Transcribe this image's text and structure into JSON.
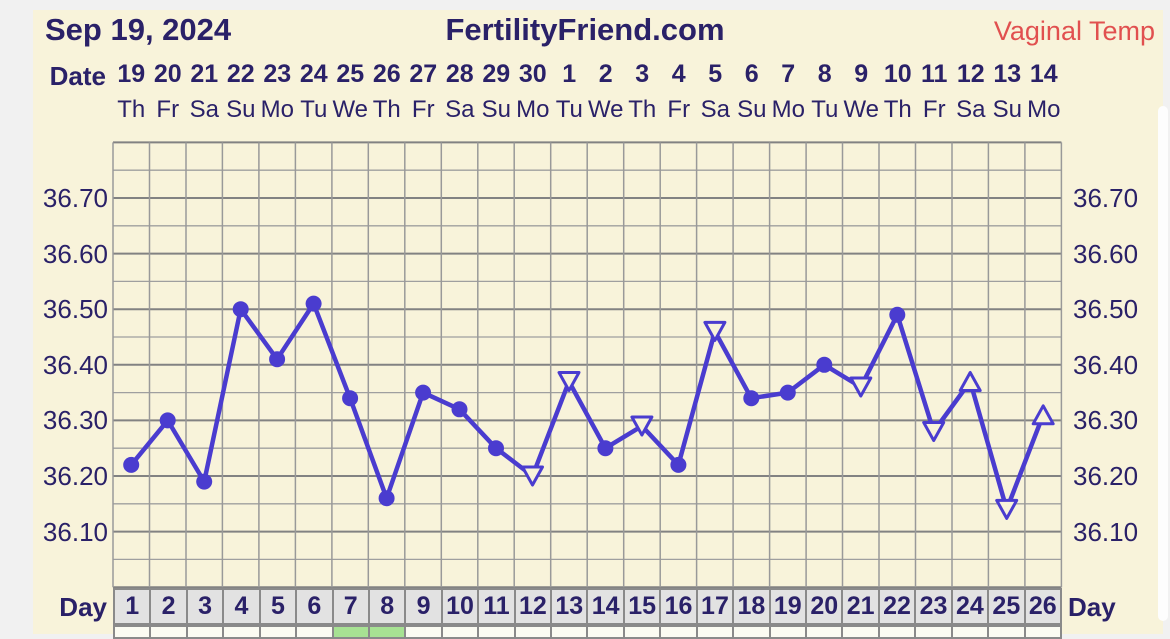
{
  "header": {
    "date": "Sep 19, 2024",
    "brand": "FertilityFriend.com",
    "temp_mode": "Vaginal Temp"
  },
  "labels": {
    "date_row": "Date",
    "day_row_left": "Day",
    "day_row_right": "Day"
  },
  "colors": {
    "panel_bg": "#f8f3da",
    "outer_bg": "#f1f1f1",
    "navy_text": "#2a2168",
    "mode_red": "#e1504f",
    "line": "#4a3ccf",
    "grid_major": "#828282",
    "grid_minor": "#9f9f9f",
    "grid_vertical": "#999999",
    "day_cell_bg": "#e2e2e2",
    "cell_border": "#8a8a8a",
    "green_cell": "#a7e293",
    "white_cell": "#fbfbf2"
  },
  "chart_data": {
    "type": "line",
    "title": "FertilityFriend.com",
    "x_days": [
      1,
      2,
      3,
      4,
      5,
      6,
      7,
      8,
      9,
      10,
      11,
      12,
      13,
      14,
      15,
      16,
      17,
      18,
      19,
      20,
      21,
      22,
      23,
      24,
      25,
      26
    ],
    "dates": [
      "19",
      "20",
      "21",
      "22",
      "23",
      "24",
      "25",
      "26",
      "27",
      "28",
      "29",
      "30",
      "1",
      "2",
      "3",
      "4",
      "5",
      "6",
      "7",
      "8",
      "9",
      "10",
      "11",
      "12",
      "13",
      "14"
    ],
    "weekdays": [
      "Th",
      "Fr",
      "Sa",
      "Su",
      "Mo",
      "Tu",
      "We",
      "Th",
      "Fr",
      "Sa",
      "Su",
      "Mo",
      "Tu",
      "We",
      "Th",
      "Fr",
      "Sa",
      "Su",
      "Mo",
      "Tu",
      "We",
      "Th",
      "Fr",
      "Sa",
      "Su",
      "Mo"
    ],
    "series": [
      {
        "name": "Vaginal Temp",
        "values": [
          36.22,
          36.3,
          36.19,
          36.5,
          36.41,
          36.51,
          36.34,
          36.16,
          36.35,
          36.32,
          36.25,
          36.2,
          36.37,
          36.25,
          36.29,
          36.22,
          36.46,
          36.34,
          36.35,
          36.4,
          36.36,
          36.49,
          36.28,
          36.37,
          36.14,
          36.31
        ],
        "marker": [
          "circle",
          "circle",
          "circle",
          "circle",
          "circle",
          "circle",
          "circle",
          "circle",
          "circle",
          "circle",
          "circle",
          "triangle-down",
          "triangle-down",
          "circle",
          "triangle-down",
          "circle",
          "triangle-down",
          "circle",
          "circle",
          "circle",
          "triangle-down",
          "circle",
          "triangle-down",
          "triangle-up",
          "triangle-down",
          "triangle-up"
        ]
      }
    ],
    "ylim": [
      36.0,
      36.8
    ],
    "yticks": [
      "36.70",
      "36.60",
      "36.50",
      "36.40",
      "36.30",
      "36.20",
      "36.10"
    ],
    "grid_step": 0.05,
    "grid": true,
    "green_day_cells": [
      7,
      8
    ]
  }
}
